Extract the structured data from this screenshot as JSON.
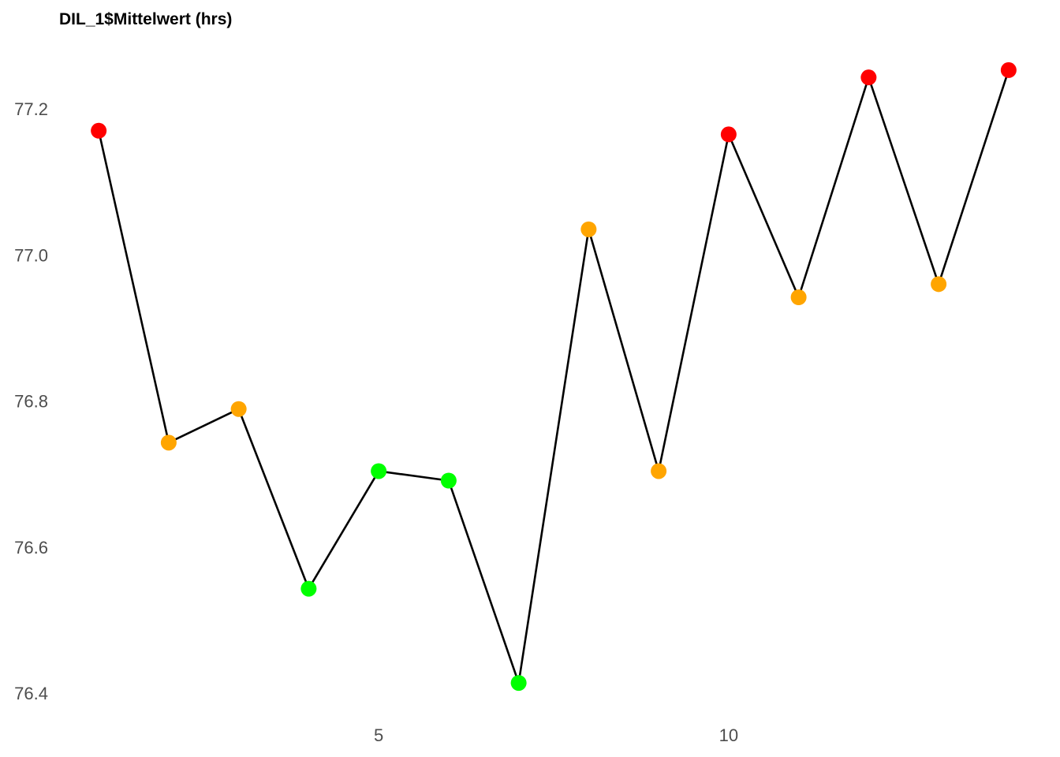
{
  "chart_data": {
    "type": "line",
    "title": "DIL_1$Mittelwert (hrs)",
    "xlabel": "",
    "ylabel": "",
    "x": [
      1,
      2,
      3,
      4,
      5,
      6,
      7,
      8,
      9,
      10,
      11,
      12,
      13,
      14
    ],
    "series": [
      {
        "values": [
          77.17,
          76.743,
          76.789,
          76.543,
          76.704,
          76.691,
          76.414,
          77.035,
          76.704,
          77.165,
          76.942,
          77.243,
          76.96,
          77.253
        ],
        "point_colors": [
          "#ff0000",
          "#ffa500",
          "#ffa500",
          "#00ff00",
          "#00ff00",
          "#00ff00",
          "#00ff00",
          "#ffa500",
          "#ffa500",
          "#ff0000",
          "#ffa500",
          "#ff0000",
          "#ffa500",
          "#ff0000"
        ]
      }
    ],
    "x_ticks": [
      5,
      10
    ],
    "x_tick_labels": [
      "5",
      "10"
    ],
    "y_ticks": [
      76.4,
      76.6,
      76.8,
      77.0,
      77.2
    ],
    "y_tick_labels": [
      "76.4",
      "76.6",
      "76.8",
      "77.0",
      "77.2"
    ],
    "xlim": [
      0.435,
      14.565
    ],
    "ylim": [
      76.372,
      77.295
    ],
    "grid": false,
    "line_color": "#000000"
  }
}
